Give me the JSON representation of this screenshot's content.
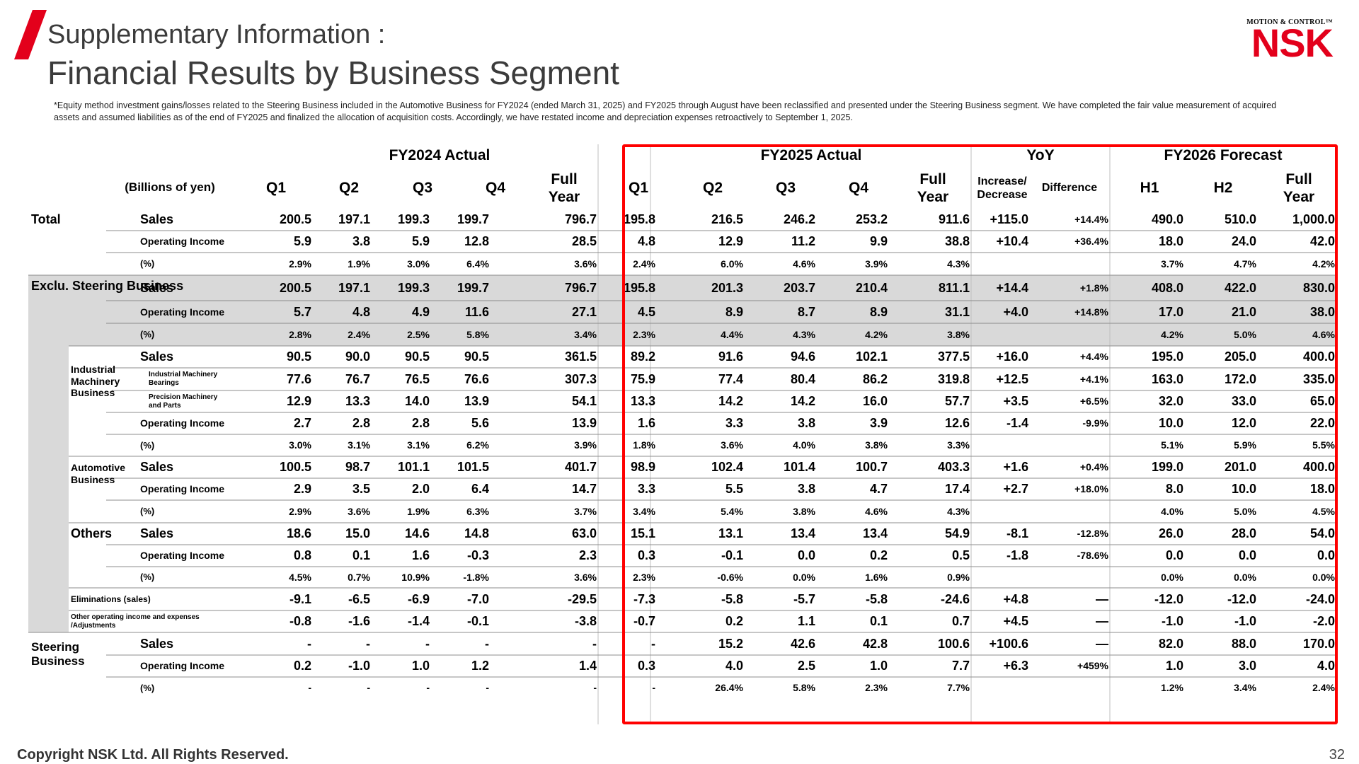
{
  "header": {
    "title_line1": "Supplementary Information :",
    "title_line2": "Financial Results by Business Segment",
    "logo_tagline": "MOTION & CONTROL™",
    "logo_mark": "NSK",
    "note": "*Equity method investment gains/losses related to the Steering Business included in the Automotive Business for FY2024 (ended March 31, 2025) and FY2025 through August have been reclassified and presented under the Steering Business segment. We have completed the fair value measurement of acquired assets and assumed liabilities as of the end of FY2025 and finalized the allocation of acquisition costs. Accordingly, we have restated income and depreciation expenses retroactively to September 1, 2025."
  },
  "table": {
    "groups": [
      "FY2024 Actual",
      "FY2025 Actual",
      "YoY",
      "FY2026 Forecast"
    ],
    "unit_label": "(Billions of yen)",
    "columns": [
      "Q1",
      "Q2",
      "Q3",
      "Q4",
      "Full\nYear",
      "Q1",
      "Q2",
      "Q3",
      "Q4",
      "Full\nYear",
      "Increase/\nDecrease",
      "Difference",
      "H1",
      "H2",
      "Full\nYear"
    ],
    "segments": [
      {
        "label": "Total"
      },
      {
        "label": "Exclu. Steering Business"
      },
      {
        "label": "Industrial\nMachinery\nBusiness"
      },
      {
        "label": "Automotive\nBusiness"
      },
      {
        "label": "Others"
      },
      {
        "label": "Steering\nBusiness"
      }
    ],
    "rows": [
      {
        "seg": "Total",
        "label": "Sales",
        "values": [
          "200.5",
          "197.1",
          "199.3",
          "199.7",
          "796.7",
          "195.8",
          "216.5",
          "246.2",
          "253.2",
          "911.6",
          "+115.0",
          "+14.4%",
          "490.0",
          "510.0",
          "1,000.0"
        ]
      },
      {
        "seg": "Total",
        "label": "Operating Income",
        "values": [
          "5.9",
          "3.8",
          "5.9",
          "12.8",
          "28.5",
          "4.8",
          "12.9",
          "11.2",
          "9.9",
          "38.8",
          "+10.4",
          "+36.4%",
          "18.0",
          "24.0",
          "42.0"
        ]
      },
      {
        "seg": "Total",
        "label": "(%)",
        "values": [
          "2.9%",
          "1.9%",
          "3.0%",
          "6.4%",
          "3.6%",
          "2.4%",
          "6.0%",
          "4.6%",
          "3.9%",
          "4.3%",
          "",
          "",
          "3.7%",
          "4.7%",
          "4.2%"
        ]
      },
      {
        "seg": "Exclu",
        "label": "Sales",
        "values": [
          "200.5",
          "197.1",
          "199.3",
          "199.7",
          "796.7",
          "195.8",
          "201.3",
          "203.7",
          "210.4",
          "811.1",
          "+14.4",
          "+1.8%",
          "408.0",
          "422.0",
          "830.0"
        ]
      },
      {
        "seg": "Exclu",
        "label": "Operating Income",
        "values": [
          "5.7",
          "4.8",
          "4.9",
          "11.6",
          "27.1",
          "4.5",
          "8.9",
          "8.7",
          "8.9",
          "31.1",
          "+4.0",
          "+14.8%",
          "17.0",
          "21.0",
          "38.0"
        ]
      },
      {
        "seg": "Exclu",
        "label": "(%)",
        "values": [
          "2.8%",
          "2.4%",
          "2.5%",
          "5.8%",
          "3.4%",
          "2.3%",
          "4.4%",
          "4.3%",
          "4.2%",
          "3.8%",
          "",
          "",
          "4.2%",
          "5.0%",
          "4.6%"
        ]
      },
      {
        "seg": "Ind",
        "label": "Sales",
        "values": [
          "90.5",
          "90.0",
          "90.5",
          "90.5",
          "361.5",
          "89.2",
          "91.6",
          "94.6",
          "102.1",
          "377.5",
          "+16.0",
          "+4.4%",
          "195.0",
          "205.0",
          "400.0"
        ]
      },
      {
        "seg": "Ind",
        "label": "Industrial Machinery\nBearings",
        "values": [
          "77.6",
          "76.7",
          "76.5",
          "76.6",
          "307.3",
          "75.9",
          "77.4",
          "80.4",
          "86.2",
          "319.8",
          "+12.5",
          "+4.1%",
          "163.0",
          "172.0",
          "335.0"
        ]
      },
      {
        "seg": "Ind",
        "label": "Precision Machinery\nand Parts",
        "values": [
          "12.9",
          "13.3",
          "14.0",
          "13.9",
          "54.1",
          "13.3",
          "14.2",
          "14.2",
          "16.0",
          "57.7",
          "+3.5",
          "+6.5%",
          "32.0",
          "33.0",
          "65.0"
        ]
      },
      {
        "seg": "Ind",
        "label": "Operating Income",
        "values": [
          "2.7",
          "2.8",
          "2.8",
          "5.6",
          "13.9",
          "1.6",
          "3.3",
          "3.8",
          "3.9",
          "12.6",
          "-1.4",
          "-9.9%",
          "10.0",
          "12.0",
          "22.0"
        ]
      },
      {
        "seg": "Ind",
        "label": "(%)",
        "values": [
          "3.0%",
          "3.1%",
          "3.1%",
          "6.2%",
          "3.9%",
          "1.8%",
          "3.6%",
          "4.0%",
          "3.8%",
          "3.3%",
          "",
          "",
          "5.1%",
          "5.9%",
          "5.5%"
        ]
      },
      {
        "seg": "Auto",
        "label": "Sales",
        "values": [
          "100.5",
          "98.7",
          "101.1",
          "101.5",
          "401.7",
          "98.9",
          "102.4",
          "101.4",
          "100.7",
          "403.3",
          "+1.6",
          "+0.4%",
          "199.0",
          "201.0",
          "400.0"
        ]
      },
      {
        "seg": "Auto",
        "label": "Operating Income",
        "values": [
          "2.9",
          "3.5",
          "2.0",
          "6.4",
          "14.7",
          "3.3",
          "5.5",
          "3.8",
          "4.7",
          "17.4",
          "+2.7",
          "+18.0%",
          "8.0",
          "10.0",
          "18.0"
        ]
      },
      {
        "seg": "Auto",
        "label": "(%)",
        "values": [
          "2.9%",
          "3.6%",
          "1.9%",
          "6.3%",
          "3.7%",
          "3.4%",
          "5.4%",
          "3.8%",
          "4.6%",
          "4.3%",
          "",
          "",
          "4.0%",
          "5.0%",
          "4.5%"
        ]
      },
      {
        "seg": "Others",
        "label": "Sales",
        "values": [
          "18.6",
          "15.0",
          "14.6",
          "14.8",
          "63.0",
          "15.1",
          "13.1",
          "13.4",
          "13.4",
          "54.9",
          "-8.1",
          "-12.8%",
          "26.0",
          "28.0",
          "54.0"
        ]
      },
      {
        "seg": "Others",
        "label": "Operating Income",
        "values": [
          "0.8",
          "0.1",
          "1.6",
          "-0.3",
          "2.3",
          "0.3",
          "-0.1",
          "0.0",
          "0.2",
          "0.5",
          "-1.8",
          "-78.6%",
          "0.0",
          "0.0",
          "0.0"
        ]
      },
      {
        "seg": "Others",
        "label": "(%)",
        "values": [
          "4.5%",
          "0.7%",
          "10.9%",
          "-1.8%",
          "3.6%",
          "2.3%",
          "-0.6%",
          "0.0%",
          "1.6%",
          "0.9%",
          "",
          "",
          "0.0%",
          "0.0%",
          "0.0%"
        ]
      },
      {
        "seg": "Elim",
        "label": "Eliminations (sales)",
        "values": [
          "-9.1",
          "-6.5",
          "-6.9",
          "-7.0",
          "-29.5",
          "-7.3",
          "-5.8",
          "-5.7",
          "-5.8",
          "-24.6",
          "+4.8",
          "—",
          "-12.0",
          "-12.0",
          "-24.0"
        ]
      },
      {
        "seg": "Adj",
        "label": "Other operating income and expenses\n/Adjustments",
        "values": [
          "-0.8",
          "-1.6",
          "-1.4",
          "-0.1",
          "-3.8",
          "-0.7",
          "0.2",
          "1.1",
          "0.1",
          "0.7",
          "+4.5",
          "—",
          "-1.0",
          "-1.0",
          "-2.0"
        ]
      },
      {
        "seg": "Steer",
        "label": "Sales",
        "values": [
          "-",
          "-",
          "-",
          "-",
          "-",
          "-",
          "15.2",
          "42.6",
          "42.8",
          "100.6",
          "+100.6",
          "—",
          "82.0",
          "88.0",
          "170.0"
        ]
      },
      {
        "seg": "Steer",
        "label": "Operating Income",
        "values": [
          "0.2",
          "-1.0",
          "1.0",
          "1.2",
          "1.4",
          "0.3",
          "4.0",
          "2.5",
          "1.0",
          "7.7",
          "+6.3",
          "+459%",
          "1.0",
          "3.0",
          "4.0"
        ]
      },
      {
        "seg": "Steer",
        "label": "(%)",
        "values": [
          "-",
          "-",
          "-",
          "-",
          "-",
          "-",
          "26.4%",
          "5.8%",
          "2.3%",
          "7.7%",
          "",
          "",
          "1.2%",
          "3.4%",
          "2.4%"
        ]
      }
    ]
  },
  "footer": {
    "copyright": "Copyright NSK Ltd. All Rights Reserved.",
    "page_number": "32"
  },
  "colors": {
    "accent_red": "#e3001b",
    "highlight_box": "#ff0000",
    "shade_gray": "#d9d9d9",
    "title_gray": "#3b3b3b"
  }
}
